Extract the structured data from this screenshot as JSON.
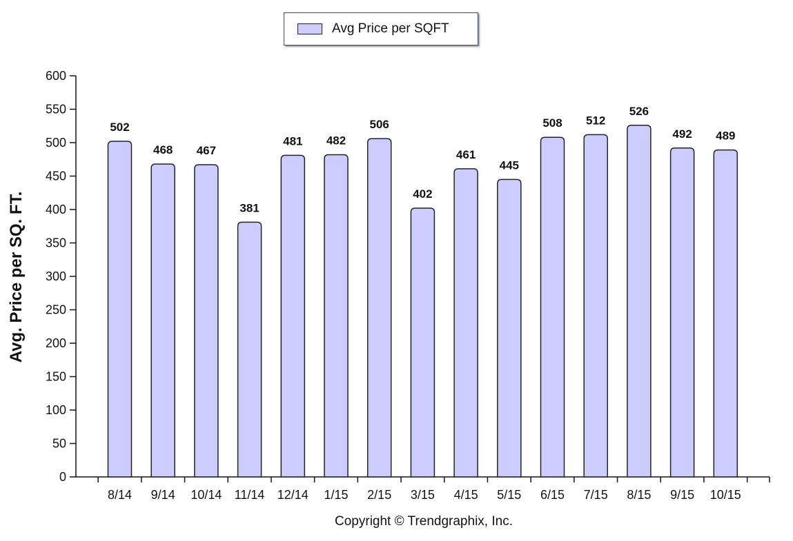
{
  "chart_data": {
    "type": "bar",
    "categories": [
      "8/14",
      "9/14",
      "10/14",
      "11/14",
      "12/14",
      "1/15",
      "2/15",
      "3/15",
      "4/15",
      "5/15",
      "6/15",
      "7/15",
      "8/15",
      "9/15",
      "10/15"
    ],
    "series": [
      {
        "name": "Avg Price per SQFT",
        "values": [
          502,
          468,
          467,
          381,
          481,
          482,
          506,
          402,
          461,
          445,
          508,
          512,
          526,
          492,
          489
        ]
      }
    ],
    "ylabel": "Avg. Price per SQ. FT.",
    "xlabel": "",
    "ylim": [
      0,
      600
    ],
    "yticks": [
      0,
      50,
      100,
      150,
      200,
      250,
      300,
      350,
      400,
      450,
      500,
      550,
      600
    ],
    "legend_position": "top-center",
    "grid": false,
    "bar_color": "#ccccff"
  },
  "footer": {
    "copyright": "Copyright © Trendgraphix, Inc."
  }
}
